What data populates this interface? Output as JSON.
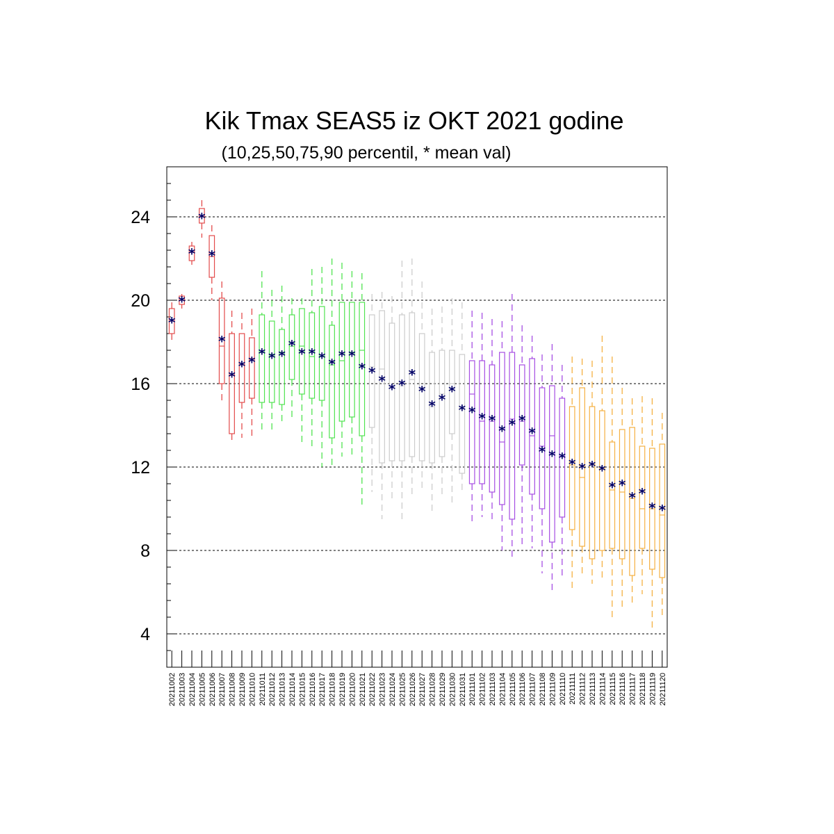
{
  "chart_data": {
    "type": "boxplot",
    "title": "Kik Tmax SEAS5 iz OKT 2021 godine",
    "subtitle": "(10,25,50,75,90 percentil, * mean val)",
    "xlabel": "",
    "ylabel": "",
    "ylim": [
      2.4,
      26.4
    ],
    "yticks": [
      4,
      8,
      12,
      16,
      20,
      24
    ],
    "ytick_labels": [
      "4",
      "8",
      "12",
      "16",
      "20",
      "24"
    ],
    "grid": "horizontal dashed at major ticks",
    "mean_marker": "*",
    "mean_color": "#000066",
    "group_colors": {
      "red": "#e34a4a",
      "green": "#4fe34f",
      "grey": "#cccccc",
      "purple": "#a64de3",
      "orange": "#f5b041"
    },
    "categories": [
      "20211002",
      "20211003",
      "20211004",
      "20211005",
      "20211006",
      "20211007",
      "20211008",
      "20211009",
      "20211010",
      "20211011",
      "20211012",
      "20211013",
      "20211014",
      "20211015",
      "20211016",
      "20211017",
      "20211018",
      "20211019",
      "20211020",
      "20211021",
      "20211022",
      "20211023",
      "20211024",
      "20211025",
      "20211026",
      "20211027",
      "20211028",
      "20211029",
      "20211030",
      "20211031",
      "20211101",
      "20211102",
      "20211103",
      "20211104",
      "20211105",
      "20211106",
      "20211107",
      "20211108",
      "20211109",
      "20211110",
      "20211111",
      "20211112",
      "20211113",
      "20211114",
      "20211115",
      "20211116",
      "20211117",
      "20211118",
      "20211119",
      "20211120"
    ],
    "p10": [
      18.0,
      19.6,
      21.7,
      23.0,
      20.0,
      15.1,
      13.1,
      13.4,
      13.5,
      13.7,
      13.8,
      14.1,
      14.2,
      13.0,
      12.9,
      12.0,
      12.1,
      12.5,
      12.4,
      10.2,
      10.8,
      9.5,
      10.4,
      9.5,
      10.6,
      10.9,
      9.7,
      10.5,
      10.3,
      10.8,
      9.3,
      9.6,
      9.3,
      8.0,
      7.7,
      8.3,
      8.1,
      6.9,
      6.1,
      6.6,
      6.1,
      6.8,
      6.4,
      6.7,
      4.8,
      5.3,
      5.3,
      5.9,
      4.1,
      4.7
    ],
    "p25": [
      18.4,
      19.8,
      21.9,
      23.7,
      21.1,
      16.0,
      13.6,
      15.1,
      15.3,
      15.1,
      15.1,
      15.0,
      16.2,
      15.5,
      15.3,
      15.2,
      13.4,
      14.2,
      14.4,
      13.5,
      13.9,
      12.2,
      12.3,
      12.3,
      12.5,
      12.3,
      12.2,
      12.5,
      13.6,
      11.7,
      11.2,
      11.2,
      10.8,
      10.2,
      9.5,
      12.1,
      10.7,
      10.0,
      8.4,
      9.6,
      9.0,
      8.2,
      7.6,
      8.0,
      8.1,
      7.6,
      6.8,
      8.1,
      7.1,
      6.7
    ],
    "p50": [
      19.0,
      20.0,
      22.3,
      24.0,
      22.1,
      17.8,
      16.4,
      16.9,
      17.2,
      17.5,
      17.4,
      17.5,
      17.8,
      17.8,
      17.3,
      17.3,
      16.9,
      17.1,
      17.5,
      17.6,
      16.8,
      16.7,
      15.8,
      15.9,
      16.2,
      15.8,
      14.9,
      15.5,
      16.0,
      14.8,
      15.5,
      14.2,
      14.2,
      13.2,
      14.3,
      14.2,
      13.5,
      13.0,
      13.5,
      12.5,
      12.1,
      11.5,
      12.1,
      11.9,
      10.9,
      10.8,
      10.5,
      10.0,
      10.0,
      9.7
    ],
    "p75": [
      19.6,
      20.2,
      22.6,
      24.4,
      23.1,
      20.1,
      18.4,
      18.4,
      18.2,
      19.3,
      19.0,
      18.6,
      19.3,
      19.6,
      19.4,
      19.7,
      18.8,
      19.9,
      19.9,
      19.9,
      19.3,
      19.5,
      18.9,
      19.3,
      19.4,
      18.4,
      17.5,
      17.6,
      17.6,
      17.4,
      17.1,
      17.1,
      16.9,
      17.5,
      17.5,
      16.9,
      17.2,
      15.8,
      15.9,
      15.3,
      14.9,
      15.8,
      14.9,
      14.7,
      13.2,
      13.8,
      13.9,
      13.0,
      12.9,
      13.1
    ],
    "p90": [
      19.9,
      20.3,
      22.8,
      24.8,
      23.6,
      20.9,
      19.5,
      19.4,
      19.6,
      21.4,
      20.5,
      20.7,
      20.1,
      20.1,
      21.5,
      21.6,
      22.0,
      21.8,
      21.4,
      21.3,
      20.3,
      20.4,
      20.2,
      21.9,
      22.0,
      20.9,
      19.6,
      19.7,
      20.1,
      19.9,
      19.5,
      19.4,
      19.1,
      19.0,
      20.3,
      18.8,
      18.3,
      17.4,
      17.9,
      16.9,
      17.3,
      17.2,
      17.1,
      18.3,
      17.3,
      15.8,
      15.3,
      15.4,
      15.3,
      14.6
    ],
    "mean": [
      19.0,
      20.0,
      22.3,
      24.0,
      22.2,
      18.1,
      16.4,
      16.9,
      17.1,
      17.5,
      17.3,
      17.4,
      17.9,
      17.5,
      17.5,
      17.3,
      17.0,
      17.4,
      17.4,
      16.8,
      16.6,
      16.2,
      15.8,
      16.0,
      16.5,
      15.7,
      15.0,
      15.3,
      15.7,
      14.8,
      14.7,
      14.4,
      14.3,
      13.8,
      14.1,
      14.3,
      13.7,
      12.8,
      12.6,
      12.5,
      12.2,
      12.0,
      12.1,
      11.9,
      11.1,
      11.2,
      10.6,
      10.8,
      10.1,
      10.0
    ]
  }
}
